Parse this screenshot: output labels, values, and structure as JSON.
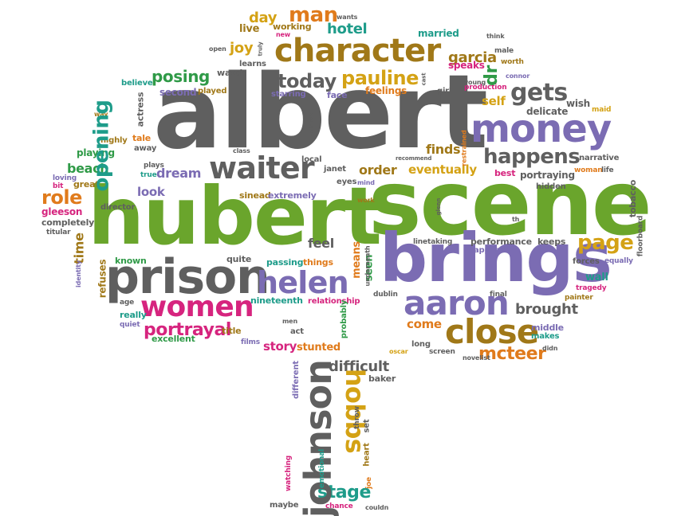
{
  "palette": {
    "gray": "#5f5f5f",
    "orange": "#e07b1c",
    "green": "#2f9a47",
    "lime": "#6aa52c",
    "purple": "#7b6cb3",
    "pink": "#d6247e",
    "gold": "#d4a215",
    "brown": "#a07818",
    "teal": "#1e9c8a"
  },
  "words": {
    "albert": "albert",
    "scene": "scene",
    "hubert": "hubert",
    "brings": "brings",
    "prison": "prison",
    "money": "money",
    "character": "character",
    "waiter": "waiter",
    "close": "close",
    "women": "women",
    "helen": "helen",
    "aaron": "aaron",
    "johnson": "johnson",
    "hobbs": "hobbs",
    "stage": "stage",
    "opening": "opening",
    "happens": "happens",
    "gets": "gets",
    "page": "page",
    "today": "today",
    "pauline": "pauline",
    "man": "man",
    "dr": "dr",
    "mcteer": "mcteer",
    "portrayal": "portrayal",
    "difficult": "difficult",
    "role": "role",
    "beach": "beach",
    "dream": "dream",
    "order": "order",
    "eventually": "eventually",
    "finds": "finds",
    "posing": "posing",
    "joy": "joy",
    "hotel": "hotel",
    "garcia": "garcia",
    "day": "day",
    "brought": "brought",
    "come": "come",
    "feel": "feel",
    "look": "look",
    "self": "self",
    "means": "means",
    "seen": "seen",
    "story": "story",
    "stunted": "stunted",
    "live": "live",
    "working": "working",
    "married": "married",
    "speaks": "speaks",
    "feelings": "feelings",
    "face": "face",
    "starring": "starring",
    "second": "second",
    "watch": "watch",
    "learns": "learns",
    "played": "played",
    "believe": "believe",
    "actress": "actress",
    "tale": "tale",
    "away": "away",
    "playing": "playing",
    "highly": "highly",
    "plays": "plays",
    "true": "true",
    "great": "great",
    "loving": "loving",
    "bit": "bit",
    "gleeson": "gleeson",
    "completely": "completely",
    "titular": "titular",
    "time": "time",
    "known": "known",
    "quite": "quite",
    "passing": "passing",
    "things": "things",
    "director": "director",
    "refuses": "refuses",
    "identity": "identity",
    "age": "age",
    "really": "really",
    "quiet": "quiet",
    "excellent": "excellent",
    "title": "title",
    "act": "act",
    "films": "films",
    "men": "men",
    "nineteenth": "nineteenth",
    "relationship": "relationship",
    "dublin": "dublin",
    "probably": "probably",
    "sinead": "sinead",
    "extremely": "extremely",
    "local": "local",
    "janet": "janet",
    "eyes": "eyes",
    "mind": "mind",
    "class": "class",
    "recommend": "recommend",
    "restrained": "restrained",
    "best": "best",
    "woman": "woman",
    "life": "life",
    "portraying": "portraying",
    "hidden": "hidden",
    "narrative": "narrative",
    "delicate": "delicate",
    "wish": "wish",
    "maid": "maid",
    "worth": "worth",
    "connor": "connor",
    "male": "male",
    "production": "production",
    "young": "young",
    "think": "think",
    "girl": "girl",
    "tobacco": "tobacco",
    "floorboard": "floorboard",
    "forces": "forces",
    "equally": "equally",
    "wall": "wall",
    "tragedy": "tragedy",
    "painter": "painter",
    "final": "final",
    "middle": "middle",
    "makes": "makes",
    "didn": "didn",
    "keeps": "keeps",
    "appears": "appears",
    "performance": "performance",
    "linetaking": "linetaking",
    "long": "long",
    "screen": "screen",
    "oscar": "oscar",
    "novelist": "novelist",
    "baker": "baker",
    "throw": "throw",
    "set": "set",
    "heart": "heart",
    "joe": "joe",
    "chance": "chance",
    "couldn": "couldn",
    "maybe": "maybe",
    "watching": "watching",
    "emotional": "emotional",
    "different": "different",
    "wants": "wants",
    "new": "new",
    "truly": "truly",
    "open": "open",
    "cast": "cast",
    "holloran": "holloran",
    "underneath": "underneath",
    "glenn": "glenn",
    "way": "way",
    "work": "work",
    "th": "th"
  }
}
